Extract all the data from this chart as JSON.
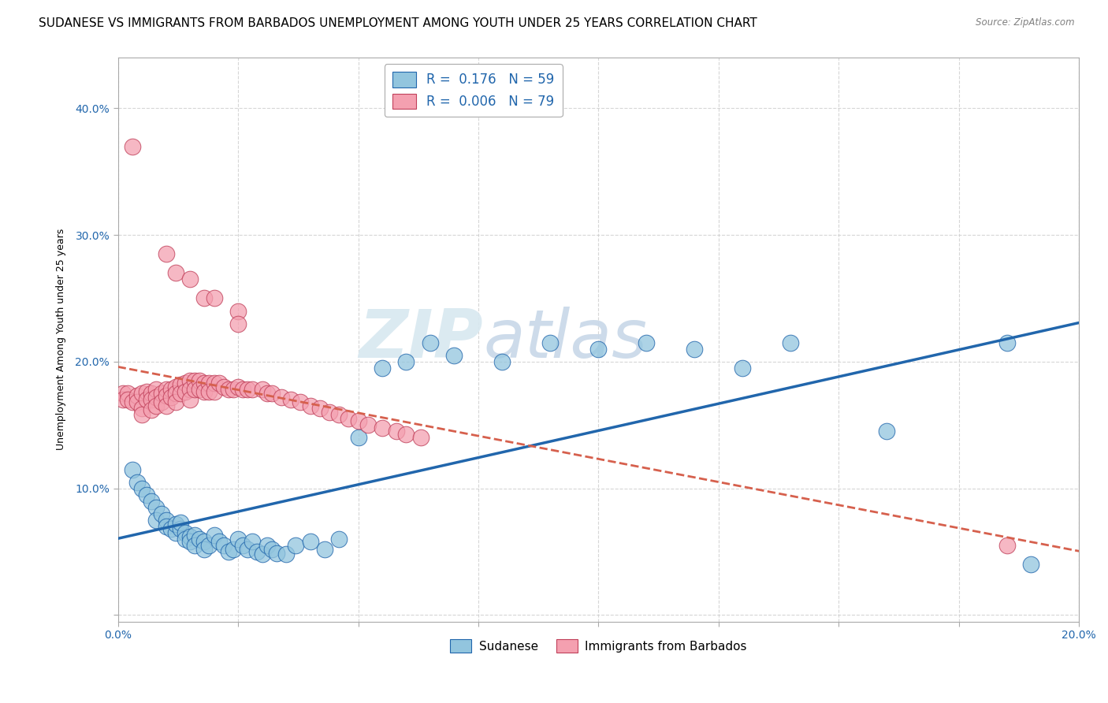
{
  "title": "SUDANESE VS IMMIGRANTS FROM BARBADOS UNEMPLOYMENT AMONG YOUTH UNDER 25 YEARS CORRELATION CHART",
  "source": "Source: ZipAtlas.com",
  "ylabel": "Unemployment Among Youth under 25 years",
  "xlim": [
    0.0,
    0.2
  ],
  "ylim": [
    -0.005,
    0.44
  ],
  "blue_color": "#92c5de",
  "pink_color": "#f4a0b0",
  "blue_line_color": "#2166ac",
  "pink_line_color": "#d6604d",
  "watermark_zip": "ZIP",
  "watermark_atlas": "atlas",
  "bg_color": "#ffffff",
  "grid_color": "#cccccc",
  "title_fontsize": 11,
  "axis_fontsize": 9,
  "tick_fontsize": 10,
  "blue_x": [
    0.003,
    0.004,
    0.005,
    0.006,
    0.007,
    0.008,
    0.008,
    0.009,
    0.01,
    0.01,
    0.011,
    0.012,
    0.012,
    0.013,
    0.013,
    0.014,
    0.014,
    0.015,
    0.015,
    0.016,
    0.016,
    0.017,
    0.018,
    0.018,
    0.019,
    0.02,
    0.021,
    0.022,
    0.023,
    0.024,
    0.025,
    0.026,
    0.027,
    0.028,
    0.029,
    0.03,
    0.031,
    0.032,
    0.033,
    0.035,
    0.037,
    0.04,
    0.043,
    0.046,
    0.05,
    0.055,
    0.06,
    0.065,
    0.07,
    0.08,
    0.09,
    0.1,
    0.11,
    0.12,
    0.13,
    0.14,
    0.16,
    0.185,
    0.19
  ],
  "blue_y": [
    0.115,
    0.105,
    0.1,
    0.095,
    0.09,
    0.085,
    0.075,
    0.08,
    0.075,
    0.07,
    0.068,
    0.065,
    0.072,
    0.068,
    0.073,
    0.065,
    0.06,
    0.062,
    0.058,
    0.063,
    0.055,
    0.06,
    0.058,
    0.052,
    0.055,
    0.063,
    0.058,
    0.055,
    0.05,
    0.052,
    0.06,
    0.055,
    0.052,
    0.058,
    0.05,
    0.048,
    0.055,
    0.052,
    0.049,
    0.048,
    0.055,
    0.058,
    0.052,
    0.06,
    0.14,
    0.195,
    0.2,
    0.215,
    0.205,
    0.2,
    0.215,
    0.21,
    0.215,
    0.21,
    0.195,
    0.215,
    0.145,
    0.215,
    0.04
  ],
  "pink_x": [
    0.001,
    0.001,
    0.002,
    0.002,
    0.003,
    0.003,
    0.004,
    0.004,
    0.005,
    0.005,
    0.005,
    0.006,
    0.006,
    0.007,
    0.007,
    0.007,
    0.008,
    0.008,
    0.008,
    0.009,
    0.009,
    0.01,
    0.01,
    0.01,
    0.011,
    0.011,
    0.012,
    0.012,
    0.012,
    0.013,
    0.013,
    0.014,
    0.014,
    0.015,
    0.015,
    0.015,
    0.016,
    0.016,
    0.017,
    0.017,
    0.018,
    0.018,
    0.019,
    0.019,
    0.02,
    0.02,
    0.021,
    0.022,
    0.023,
    0.024,
    0.025,
    0.026,
    0.027,
    0.028,
    0.03,
    0.031,
    0.032,
    0.034,
    0.036,
    0.038,
    0.04,
    0.042,
    0.044,
    0.046,
    0.048,
    0.05,
    0.052,
    0.055,
    0.058,
    0.06,
    0.063,
    0.01,
    0.012,
    0.015,
    0.018,
    0.02,
    0.025,
    0.025,
    0.185
  ],
  "pink_y": [
    0.175,
    0.17,
    0.175,
    0.17,
    0.37,
    0.168,
    0.173,
    0.168,
    0.175,
    0.163,
    0.158,
    0.176,
    0.17,
    0.175,
    0.17,
    0.162,
    0.178,
    0.172,
    0.165,
    0.175,
    0.168,
    0.178,
    0.173,
    0.165,
    0.178,
    0.172,
    0.18,
    0.175,
    0.168,
    0.182,
    0.175,
    0.183,
    0.176,
    0.185,
    0.178,
    0.17,
    0.185,
    0.178,
    0.185,
    0.178,
    0.183,
    0.176,
    0.183,
    0.176,
    0.183,
    0.176,
    0.183,
    0.18,
    0.178,
    0.178,
    0.18,
    0.178,
    0.178,
    0.178,
    0.178,
    0.175,
    0.175,
    0.172,
    0.17,
    0.168,
    0.165,
    0.163,
    0.16,
    0.158,
    0.155,
    0.153,
    0.15,
    0.148,
    0.145,
    0.143,
    0.14,
    0.285,
    0.27,
    0.265,
    0.25,
    0.25,
    0.24,
    0.23,
    0.055
  ]
}
